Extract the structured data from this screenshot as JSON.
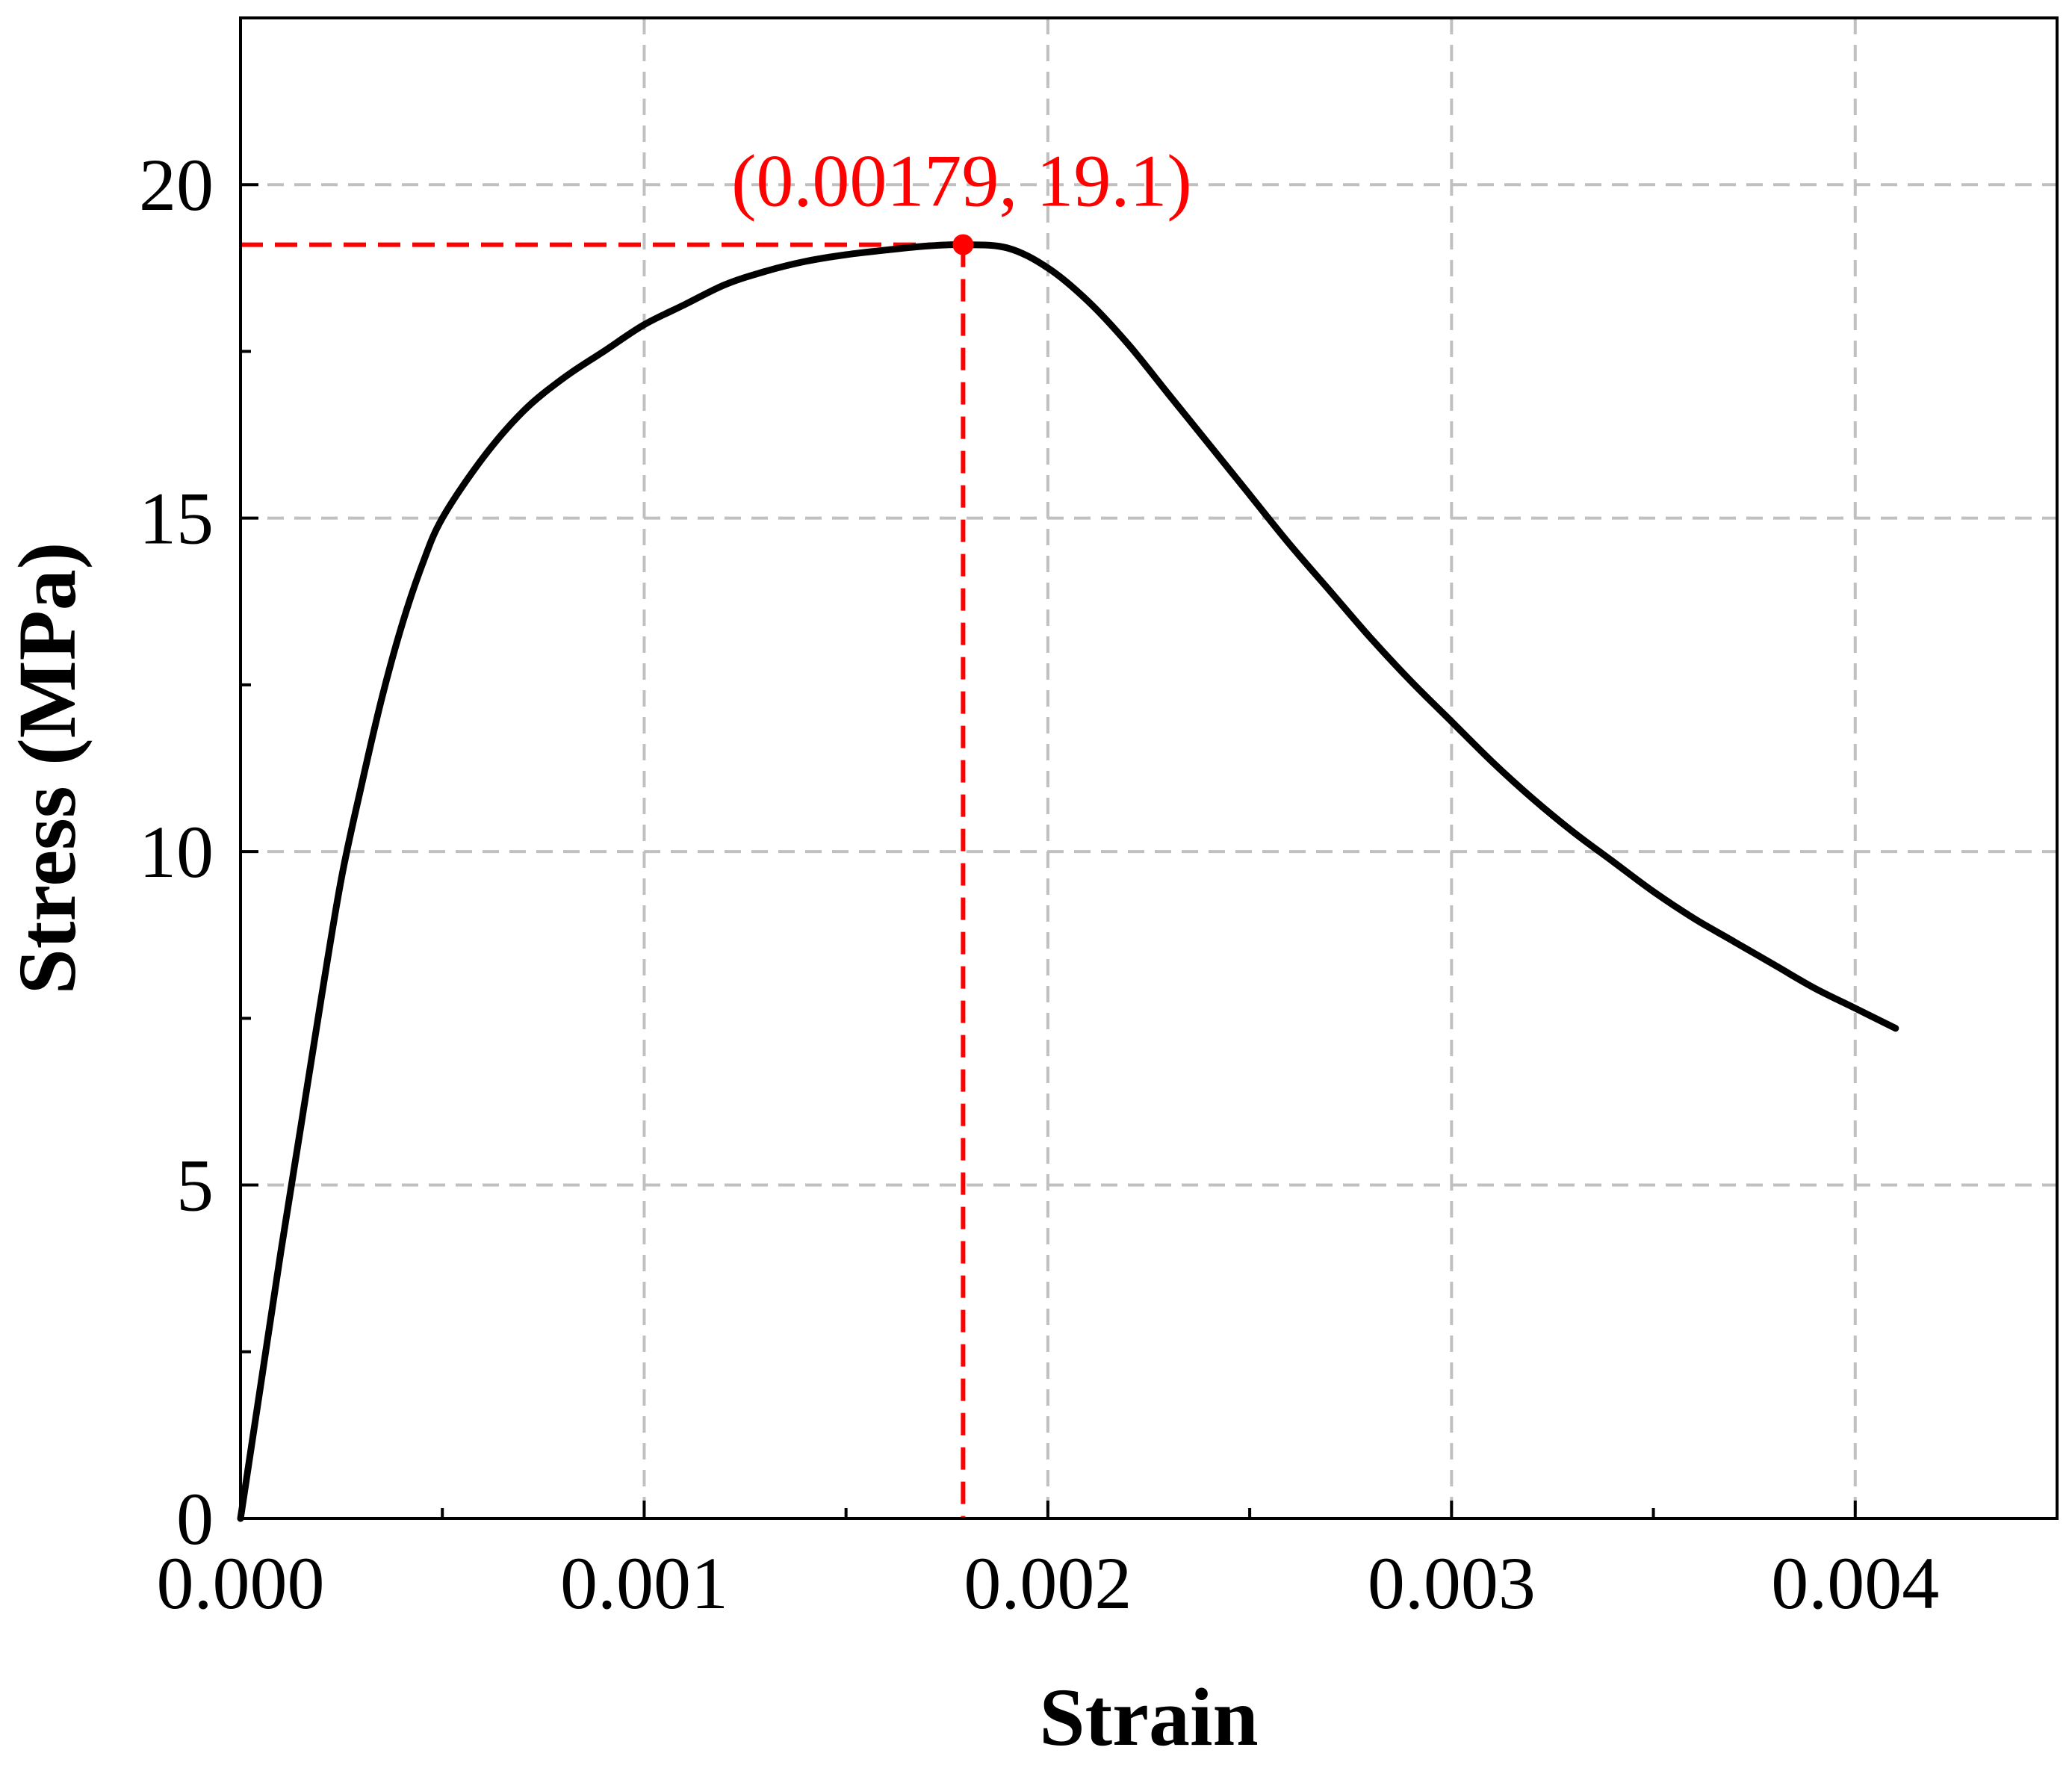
{
  "chart_data": {
    "type": "line",
    "title": "",
    "xlabel": "Strain",
    "ylabel": "Stress (MPa)",
    "xlim": [
      0,
      0.0045
    ],
    "ylim": [
      0,
      22.5
    ],
    "x_ticks": [
      0.0,
      0.001,
      0.002,
      0.003,
      0.004
    ],
    "x_tick_labels": [
      "0.000",
      "0.001",
      "0.002",
      "0.003",
      "0.004"
    ],
    "x_minor_ticks": [
      0.0005,
      0.0015,
      0.0025,
      0.0035
    ],
    "y_ticks": [
      0,
      5,
      10,
      15,
      20
    ],
    "y_tick_labels": [
      "0",
      "5",
      "10",
      "15",
      "20"
    ],
    "y_minor_ticks": [
      2.5,
      7.5,
      12.5,
      17.5
    ],
    "grid": true,
    "legend": "none",
    "series": [
      {
        "color": "#000000",
        "x": [
          0.0,
          5e-05,
          0.0001,
          0.00015,
          0.0002,
          0.00025,
          0.0003,
          0.00035,
          0.0004,
          0.00045,
          0.0005,
          0.0006,
          0.0007,
          0.0008,
          0.0009,
          0.001,
          0.0011,
          0.0012,
          0.0013,
          0.0014,
          0.0015,
          0.0016,
          0.0017,
          0.00179,
          0.0019,
          0.002,
          0.0021,
          0.0022,
          0.0023,
          0.0024,
          0.0025,
          0.0026,
          0.0027,
          0.0028,
          0.0029,
          0.003,
          0.0031,
          0.0032,
          0.0033,
          0.0034,
          0.0035,
          0.0036,
          0.0037,
          0.0038,
          0.0039,
          0.004,
          0.0041
        ],
        "y": [
          0.0,
          2.0,
          4.0,
          5.9,
          7.8,
          9.6,
          11.0,
          12.3,
          13.4,
          14.3,
          15.0,
          15.9,
          16.6,
          17.1,
          17.5,
          17.9,
          18.2,
          18.5,
          18.7,
          18.85,
          18.95,
          19.02,
          19.08,
          19.1,
          19.05,
          18.75,
          18.25,
          17.6,
          16.85,
          16.1,
          15.35,
          14.6,
          13.9,
          13.2,
          12.55,
          11.95,
          11.35,
          10.8,
          10.3,
          9.85,
          9.4,
          9.0,
          8.65,
          8.3,
          7.95,
          7.65,
          7.35
        ]
      }
    ],
    "peak": {
      "x": 0.00179,
      "y": 19.1,
      "label": "(0.00179, 19.1)",
      "color": "#ff0000"
    },
    "colors": {
      "axis": "#000000",
      "grid": "#c0c0c0",
      "annotation": "#ff0000"
    }
  }
}
